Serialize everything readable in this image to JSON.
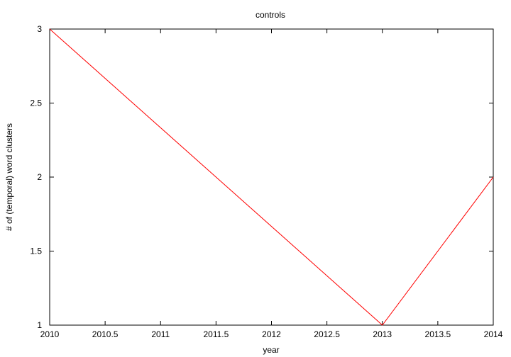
{
  "chart_data": {
    "type": "line",
    "title": "controls",
    "xlabel": "year",
    "ylabel": "# of (temporal) word clusters",
    "xlim": [
      2010,
      2014
    ],
    "ylim": [
      1,
      3
    ],
    "x_ticks": [
      "2010",
      "2010.5",
      "2011",
      "2011.5",
      "2012",
      "2012.5",
      "2013",
      "2013.5",
      "2014"
    ],
    "y_ticks": [
      "1",
      "1.5",
      "2",
      "2.5",
      "3"
    ],
    "grid": false,
    "legend": "none",
    "series": [
      {
        "color": "#ff0000",
        "x": [
          2010,
          2013,
          2014
        ],
        "y": [
          3,
          1,
          2
        ]
      }
    ]
  }
}
